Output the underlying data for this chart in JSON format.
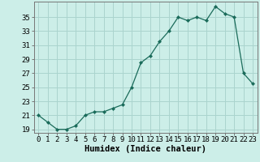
{
  "x": [
    0,
    1,
    2,
    3,
    4,
    5,
    6,
    7,
    8,
    9,
    10,
    11,
    12,
    13,
    14,
    15,
    16,
    17,
    18,
    19,
    20,
    21,
    22,
    23
  ],
  "y": [
    21,
    20,
    19,
    19,
    19.5,
    21,
    21.5,
    21.5,
    22,
    22.5,
    25,
    28.5,
    29.5,
    31.5,
    33,
    35,
    34.5,
    35,
    34.5,
    36.5,
    35.5,
    35,
    27,
    25.5
  ],
  "line_color": "#1a6b5a",
  "marker_color": "#1a6b5a",
  "bg_color": "#cceee8",
  "grid_color": "#aad4ce",
  "xlabel": "Humidex (Indice chaleur)",
  "ylim": [
    18.5,
    37.2
  ],
  "xlim": [
    -0.5,
    23.5
  ],
  "yticks": [
    19,
    21,
    23,
    25,
    27,
    29,
    31,
    33,
    35
  ],
  "xticks": [
    0,
    1,
    2,
    3,
    4,
    5,
    6,
    7,
    8,
    9,
    10,
    11,
    12,
    13,
    14,
    15,
    16,
    17,
    18,
    19,
    20,
    21,
    22,
    23
  ],
  "xlabel_fontsize": 7.5,
  "tick_fontsize": 6.5
}
